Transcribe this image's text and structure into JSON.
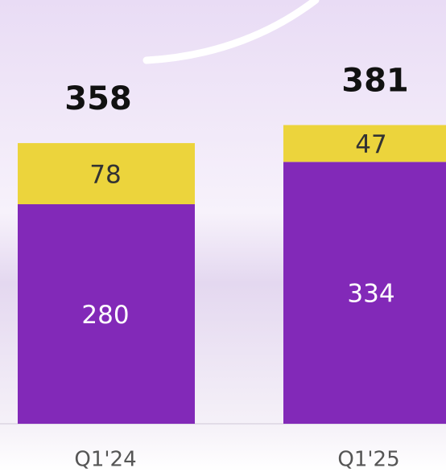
{
  "chart_data": {
    "type": "bar",
    "stacked": true,
    "categories": [
      "Q1'24",
      "Q1'25"
    ],
    "series": [
      {
        "color": "#8229b8",
        "values": [
          280,
          334
        ]
      },
      {
        "color": "#ecd43c",
        "values": [
          78,
          47
        ]
      }
    ],
    "totals": [
      358,
      381
    ]
  }
}
